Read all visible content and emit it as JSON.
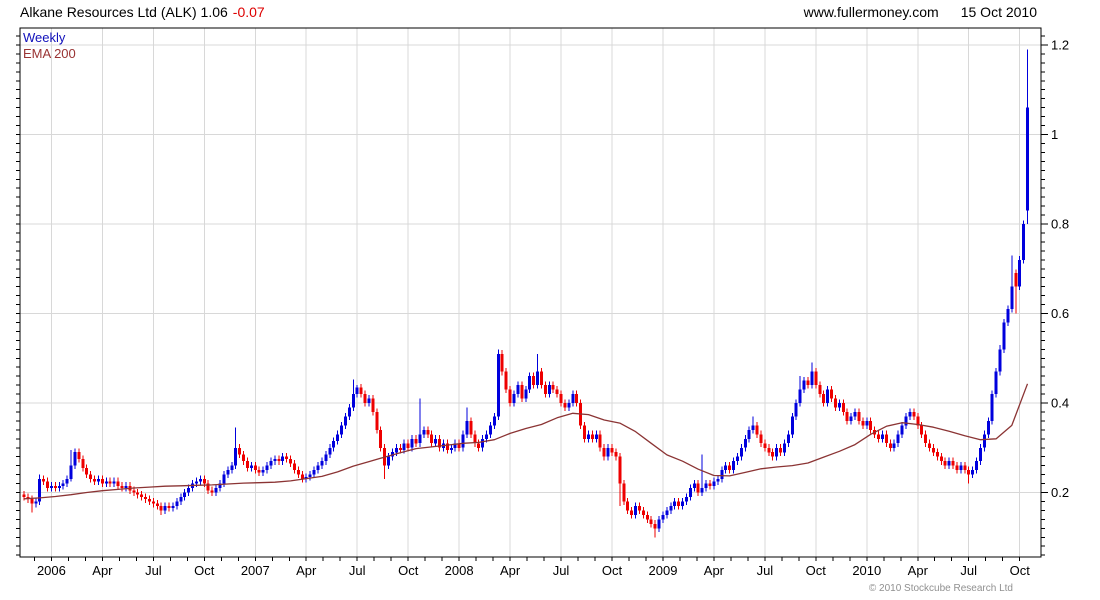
{
  "header": {
    "title": "Alkane Resources Ltd (ALK) 1.06",
    "change": "-0.07",
    "site": "www.fullermoney.com",
    "date": "15 Oct 2010"
  },
  "legend": {
    "weekly": "Weekly",
    "ema": "EMA 200"
  },
  "footer": {
    "copyright": "© 2010 Stockcube Research Ltd"
  },
  "colors": {
    "up": "#0000dd",
    "down": "#ee0000",
    "ema_line": "#8b3434",
    "grid": "#d8d8d8",
    "border": "#000000",
    "change_text": "#dd0000",
    "weekly_label": "#1111bb",
    "ema_label": "#993333",
    "copyright_text": "#909090"
  },
  "chart_data": {
    "type": "candlestick",
    "title": "Alkane Resources Ltd (ALK) weekly candles with 200-period EMA",
    "last_price": 1.06,
    "change": -0.07,
    "x_axis": {
      "tick_labels": [
        "2006",
        "Apr",
        "Jul",
        "Oct",
        "2007",
        "Apr",
        "Jul",
        "Oct",
        "2008",
        "Apr",
        "Jul",
        "Oct",
        "2009",
        "Apr",
        "Jul",
        "Oct",
        "2010",
        "Apr",
        "Jul",
        "Oct"
      ],
      "tick_weeks": [
        7,
        20,
        33,
        46,
        59,
        72,
        85,
        98,
        111,
        124,
        137,
        150,
        163,
        176,
        189,
        202,
        215,
        228,
        241,
        254
      ],
      "first_minor_tick_week": 2.6667,
      "minor_tick_step_weeks": 4.3333,
      "weeks_total": 257
    },
    "y_axis": {
      "major_ticks": [
        0.2,
        0.4,
        0.6,
        0.8,
        1,
        1.2
      ],
      "tick_labels": [
        "0.2",
        "0.4",
        "0.6",
        "0.8",
        "1",
        "1.2"
      ],
      "minor_tick_step": 0.02,
      "ylim": [
        0.06,
        1.238
      ],
      "grid_horizontal_at": [
        0.2,
        0.4,
        0.6,
        0.8,
        1,
        1.2
      ]
    },
    "series": [
      {
        "name": "Weekly",
        "type": "candles",
        "first_open": 0.195,
        "default_wick_pad": 0.008,
        "closes": [
          0.19,
          0.185,
          0.175,
          0.18,
          0.23,
          0.225,
          0.21,
          0.215,
          0.21,
          0.215,
          0.22,
          0.23,
          0.26,
          0.29,
          0.275,
          0.255,
          0.24,
          0.23,
          0.225,
          0.23,
          0.22,
          0.225,
          0.22,
          0.225,
          0.215,
          0.21,
          0.215,
          0.205,
          0.2,
          0.195,
          0.19,
          0.185,
          0.18,
          0.175,
          0.17,
          0.16,
          0.17,
          0.165,
          0.17,
          0.18,
          0.19,
          0.2,
          0.21,
          0.22,
          0.225,
          0.23,
          0.22,
          0.205,
          0.2,
          0.21,
          0.22,
          0.24,
          0.25,
          0.26,
          0.3,
          0.285,
          0.27,
          0.255,
          0.26,
          0.25,
          0.245,
          0.25,
          0.26,
          0.27,
          0.275,
          0.27,
          0.28,
          0.275,
          0.265,
          0.25,
          0.24,
          0.23,
          0.235,
          0.24,
          0.25,
          0.26,
          0.27,
          0.285,
          0.3,
          0.315,
          0.33,
          0.35,
          0.37,
          0.39,
          0.42,
          0.435,
          0.42,
          0.4,
          0.41,
          0.38,
          0.34,
          0.3,
          0.26,
          0.28,
          0.29,
          0.3,
          0.295,
          0.31,
          0.3,
          0.32,
          0.31,
          0.33,
          0.34,
          0.33,
          0.31,
          0.32,
          0.3,
          0.31,
          0.295,
          0.3,
          0.31,
          0.3,
          0.33,
          0.36,
          0.33,
          0.31,
          0.3,
          0.32,
          0.33,
          0.35,
          0.37,
          0.51,
          0.47,
          0.43,
          0.4,
          0.42,
          0.44,
          0.41,
          0.43,
          0.46,
          0.44,
          0.47,
          0.44,
          0.42,
          0.44,
          0.43,
          0.42,
          0.4,
          0.39,
          0.4,
          0.42,
          0.4,
          0.35,
          0.32,
          0.33,
          0.32,
          0.33,
          0.3,
          0.28,
          0.3,
          0.29,
          0.28,
          0.22,
          0.18,
          0.16,
          0.15,
          0.17,
          0.16,
          0.15,
          0.14,
          0.13,
          0.12,
          0.14,
          0.15,
          0.16,
          0.17,
          0.18,
          0.17,
          0.18,
          0.19,
          0.21,
          0.22,
          0.2,
          0.21,
          0.22,
          0.215,
          0.225,
          0.23,
          0.25,
          0.26,
          0.25,
          0.27,
          0.28,
          0.3,
          0.32,
          0.34,
          0.35,
          0.33,
          0.31,
          0.3,
          0.29,
          0.28,
          0.3,
          0.29,
          0.31,
          0.33,
          0.37,
          0.4,
          0.43,
          0.45,
          0.44,
          0.47,
          0.44,
          0.42,
          0.4,
          0.43,
          0.41,
          0.39,
          0.4,
          0.38,
          0.36,
          0.37,
          0.38,
          0.36,
          0.35,
          0.36,
          0.34,
          0.33,
          0.32,
          0.33,
          0.31,
          0.3,
          0.31,
          0.33,
          0.35,
          0.37,
          0.38,
          0.37,
          0.35,
          0.33,
          0.31,
          0.3,
          0.29,
          0.28,
          0.27,
          0.26,
          0.27,
          0.26,
          0.25,
          0.26,
          0.25,
          0.24,
          0.25,
          0.27,
          0.3,
          0.33,
          0.36,
          0.42,
          0.47,
          0.52,
          0.58,
          0.61,
          0.66,
          0.66,
          0.72,
          0.8,
          1.06
        ],
        "overrides": {
          "2": {
            "l": 0.155
          },
          "4": {
            "h": 0.24
          },
          "12": {
            "h": 0.295,
            "l": 0.225
          },
          "35": {
            "l": 0.15
          },
          "54": {
            "h": 0.345
          },
          "84": {
            "h": 0.452
          },
          "85": {
            "h": 0.44
          },
          "92": {
            "l": 0.23
          },
          "101": {
            "h": 0.41
          },
          "113": {
            "h": 0.39
          },
          "121": {
            "h": 0.52
          },
          "131": {
            "h": 0.51
          },
          "152": {
            "l": 0.17
          },
          "161": {
            "l": 0.1
          },
          "173": {
            "h": 0.285
          },
          "186": {
            "h": 0.37
          },
          "198": {
            "h": 0.46
          },
          "201": {
            "h": 0.49
          },
          "241": {
            "l": 0.22
          },
          "249": {
            "h": 0.53
          },
          "252": {
            "h": 0.73
          },
          "253": {
            "o": 0.69,
            "l": 0.6
          },
          "256": {
            "o": 0.83,
            "h": 1.19,
            "l": 0.8
          }
        }
      },
      {
        "name": "EMA 200",
        "type": "line",
        "week_step": 4,
        "values": [
          0.186,
          0.188,
          0.191,
          0.195,
          0.2,
          0.204,
          0.207,
          0.21,
          0.212,
          0.214,
          0.215,
          0.216,
          0.217,
          0.219,
          0.221,
          0.222,
          0.223,
          0.226,
          0.231,
          0.236,
          0.246,
          0.259,
          0.269,
          0.279,
          0.289,
          0.298,
          0.302,
          0.306,
          0.31,
          0.312,
          0.318,
          0.332,
          0.343,
          0.352,
          0.367,
          0.377,
          0.374,
          0.362,
          0.355,
          0.336,
          0.31,
          0.284,
          0.27,
          0.252,
          0.238,
          0.237,
          0.245,
          0.253,
          0.257,
          0.26,
          0.266,
          0.279,
          0.292,
          0.307,
          0.33,
          0.348,
          0.356,
          0.352,
          0.346,
          0.337,
          0.327,
          0.318,
          0.32,
          0.35,
          0.443
        ]
      }
    ]
  }
}
